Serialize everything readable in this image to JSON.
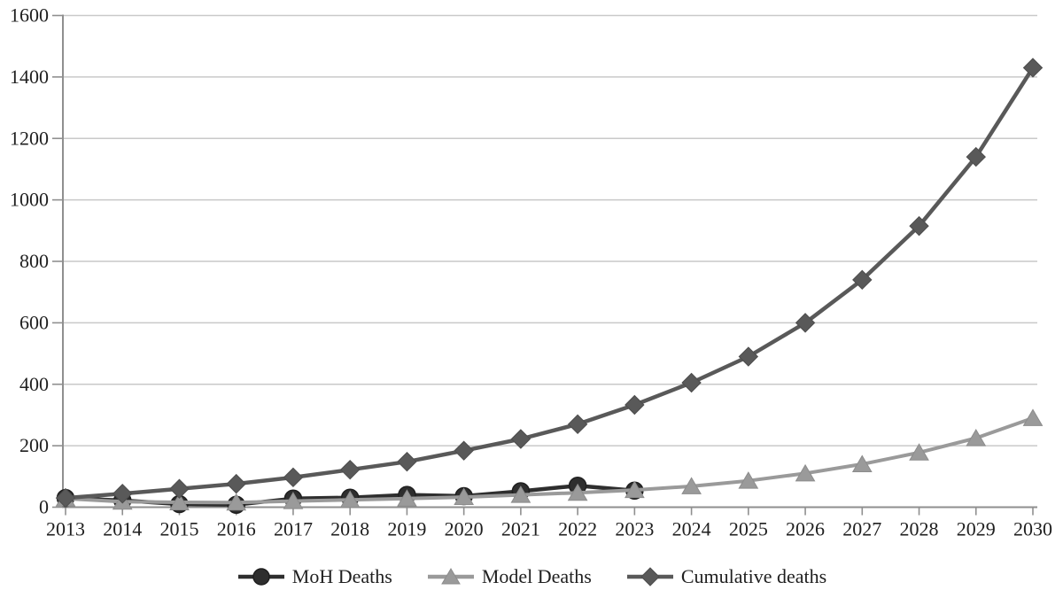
{
  "chart_data": {
    "type": "line",
    "title": "",
    "xlabel": "",
    "ylabel": "",
    "categories": [
      "2013",
      "2014",
      "2015",
      "2016",
      "2017",
      "2018",
      "2019",
      "2020",
      "2021",
      "2022",
      "2023",
      "2024",
      "2025",
      "2026",
      "2027",
      "2028",
      "2029",
      "2030"
    ],
    "series": [
      {
        "name": "MoH Deaths",
        "marker": "circle",
        "color": "#2e2e2e",
        "edge_color": "#1f1f1f",
        "values": [
          30,
          22,
          10,
          8,
          28,
          31,
          40,
          36,
          52,
          70,
          54,
          null,
          null,
          null,
          null,
          null,
          null,
          null
        ]
      },
      {
        "name": "Model Deaths",
        "marker": "triangle",
        "color": "#9a9a9a",
        "edge_color": "#8c8c8c",
        "values": [
          28,
          18,
          16,
          15,
          20,
          24,
          28,
          33,
          40,
          47,
          56,
          68,
          86,
          110,
          140,
          178,
          225,
          290
        ]
      },
      {
        "name": "Cumulative deaths",
        "marker": "diamond",
        "color": "#595959",
        "edge_color": "#4d4d4d",
        "values": [
          30,
          44,
          60,
          76,
          97,
          122,
          148,
          184,
          222,
          270,
          333,
          405,
          490,
          600,
          740,
          915,
          1140,
          1430
        ]
      }
    ],
    "ylim": [
      0,
      1600
    ],
    "y_ticks": [
      0,
      200,
      400,
      600,
      800,
      1000,
      1200,
      1400,
      1600
    ],
    "grid": "horizontal",
    "legend_position": "bottom",
    "colors": {
      "gridline": "#c9c9c9",
      "axis": "#8f8f8f",
      "tick_text": "#1f1f1f",
      "background": "#ffffff"
    }
  }
}
